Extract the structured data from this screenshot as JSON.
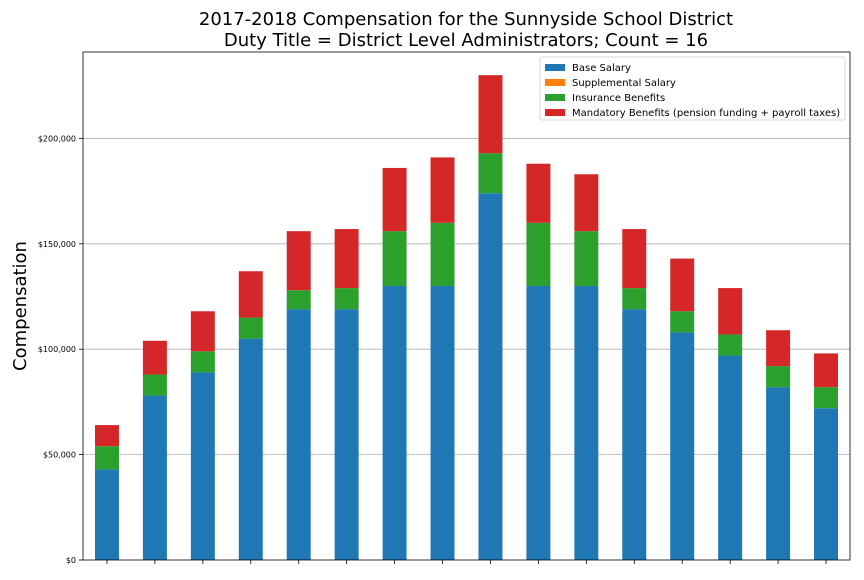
{
  "chart_data": {
    "type": "bar",
    "stacked": true,
    "title_line1": "2017-2018 Compensation for the Sunnyside School District",
    "title_line2": "Duty Title = District Level Administrators; Count = 16",
    "xlabel": "",
    "ylabel": "Compensation",
    "ylim": [
      0,
      241000
    ],
    "y_ticks": [
      0,
      50000,
      100000,
      150000,
      200000
    ],
    "y_tick_labels": [
      "$0",
      "$50,000",
      "$100,000",
      "$150,000",
      "$200,000"
    ],
    "grid": "horizontal",
    "legend_position": "top-right",
    "categories": [
      "",
      "",
      "",
      "",
      "",
      "",
      "",
      "",
      "",
      "",
      "",
      "",
      "",
      "",
      "",
      ""
    ],
    "series": [
      {
        "name": "Base Salary",
        "color": "#1f77b4",
        "values": [
          43000,
          78000,
          89000,
          105000,
          119000,
          119000,
          130000,
          130000,
          174000,
          130000,
          130000,
          119000,
          108000,
          97000,
          82000,
          72000
        ]
      },
      {
        "name": "Supplemental Salary",
        "color": "#ff7f0e",
        "values": [
          0,
          0,
          0,
          0,
          0,
          0,
          0,
          0,
          0,
          0,
          0,
          0,
          0,
          0,
          0,
          0
        ]
      },
      {
        "name": "Insurance Benefits",
        "color": "#2ca02c",
        "values": [
          11000,
          10000,
          10000,
          10000,
          9000,
          10000,
          26000,
          30000,
          19000,
          30000,
          26000,
          10000,
          10000,
          10000,
          10000,
          10000
        ]
      },
      {
        "name": "Mandatory Benefits (pension funding + payroll taxes)",
        "color": "#d62728",
        "values": [
          10000,
          16000,
          19000,
          22000,
          28000,
          28000,
          30000,
          31000,
          37000,
          28000,
          27000,
          28000,
          25000,
          22000,
          17000,
          16000
        ]
      }
    ]
  }
}
